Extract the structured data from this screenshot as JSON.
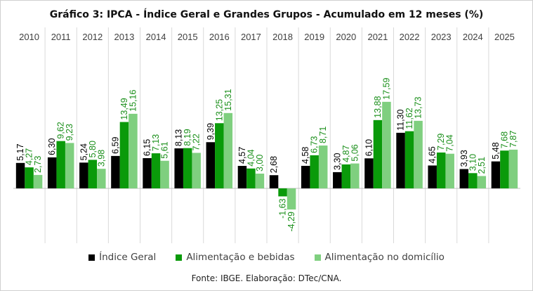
{
  "chart_data": {
    "type": "bar",
    "title": "Gráfico 3: IPCA - Índice Geral e Grandes Grupos - Acumulado em 12 meses (%)",
    "categories": [
      "2010",
      "2011",
      "2012",
      "2013",
      "2014",
      "2015",
      "2016",
      "2017",
      "2018",
      "2019",
      "2020",
      "2021",
      "2022",
      "2023",
      "2024",
      "2025"
    ],
    "series": [
      {
        "name": "Índice Geral",
        "color": "#000000",
        "values": [
          5.17,
          6.3,
          5.24,
          6.59,
          6.15,
          8.13,
          9.39,
          4.57,
          2.68,
          4.58,
          3.3,
          6.1,
          11.3,
          4.65,
          3.93,
          5.48
        ],
        "labels": [
          "5,17",
          "6,30",
          "5,24",
          "6,59",
          "6,15",
          "8,13",
          "9,39",
          "4,57",
          "2,68",
          "4,58",
          "3,30",
          "6,10",
          "11,30",
          "4,65",
          "3,93",
          "5,48"
        ]
      },
      {
        "name": "Alimentação e bebidas",
        "color": "#0a9a0a",
        "values": [
          4.27,
          9.62,
          5.8,
          13.49,
          7.13,
          8.19,
          13.25,
          4.04,
          -1.63,
          6.73,
          4.87,
          13.88,
          11.62,
          7.29,
          3.1,
          7.68
        ],
        "labels": [
          "4,27",
          "9,62",
          "5,80",
          "13,49",
          "7,13",
          "8,19",
          "13,25",
          "4,04",
          "-1,63",
          "6,73",
          "4,87",
          "13,88",
          "11,62",
          "7,29",
          "3,10",
          "7,68"
        ]
      },
      {
        "name": "Alimentação no domicílio",
        "color": "#7fcf7f",
        "values": [
          2.73,
          9.23,
          3.98,
          15.16,
          5.61,
          7.22,
          15.31,
          3.0,
          -4.29,
          8.71,
          5.06,
          17.59,
          13.73,
          7.04,
          2.51,
          7.87
        ],
        "labels": [
          "2,73",
          "9,23",
          "3,98",
          "15,16",
          "5,61",
          "7,22",
          "15,31",
          "3,00",
          "-4,29",
          "8,71",
          "5,06",
          "17,59",
          "13,73",
          "7,04",
          "2,51",
          "7,87"
        ]
      }
    ],
    "ylim": [
      -6,
      18
    ],
    "grid": false,
    "legend_position": "bottom",
    "label_colors": {
      "series0": "#000000",
      "series1": "#1a8f1a",
      "series2": "#1a8f1a"
    }
  },
  "source": "Fonte: IBGE. Elaboração: DTec/CNA."
}
